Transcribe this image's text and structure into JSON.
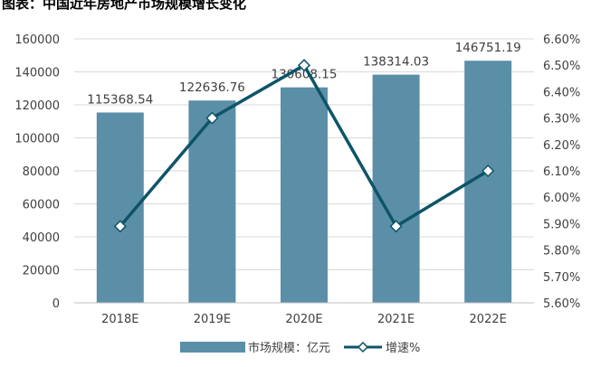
{
  "chart_data": {
    "type": "bar",
    "title": "图表：中国近年房地产市场规模增长变化",
    "categories": [
      "2018E",
      "2019E",
      "2020E",
      "2021E",
      "2022E"
    ],
    "series": [
      {
        "name": "市场规模：亿元",
        "type": "bar",
        "axis": "left",
        "values": [
          115368.54,
          122636.76,
          130608.15,
          138314.03,
          146751.19
        ],
        "labels": [
          "115368.54",
          "122636.76",
          "130608.15",
          "138314.03",
          "146751.19"
        ],
        "color": "#5b8fa8"
      },
      {
        "name": "增速%",
        "type": "line",
        "axis": "right",
        "values": [
          5.89,
          6.3,
          6.5,
          5.89,
          6.1
        ],
        "color": "#0e5468"
      }
    ],
    "y_left": {
      "min": 0,
      "max": 160000,
      "ticks": [
        0,
        20000,
        40000,
        60000,
        80000,
        100000,
        120000,
        140000,
        160000
      ],
      "tick_labels": [
        "0",
        "20000",
        "40000",
        "60000",
        "80000",
        "100000",
        "120000",
        "140000",
        "160000"
      ]
    },
    "y_right": {
      "min": 5.6,
      "max": 6.6,
      "ticks": [
        5.6,
        5.7,
        5.8,
        5.9,
        6.0,
        6.1,
        6.2,
        6.3,
        6.4,
        6.5,
        6.6
      ],
      "tick_labels": [
        "5.60%",
        "5.70%",
        "5.80%",
        "5.90%",
        "6.00%",
        "6.10%",
        "6.20%",
        "6.30%",
        "6.40%",
        "6.50%",
        "6.60%"
      ]
    },
    "grid": true,
    "legend_position": "bottom"
  }
}
